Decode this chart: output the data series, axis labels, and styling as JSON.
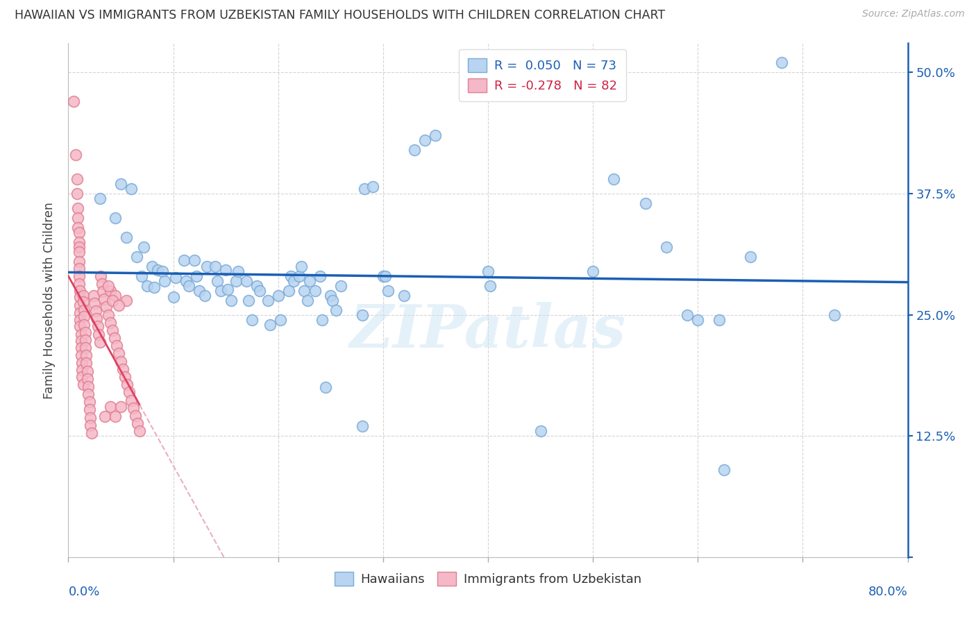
{
  "title": "HAWAIIAN VS IMMIGRANTS FROM UZBEKISTAN FAMILY HOUSEHOLDS WITH CHILDREN CORRELATION CHART",
  "source": "Source: ZipAtlas.com",
  "ylabel": "Family Households with Children",
  "xmin": 0.0,
  "xmax": 0.8,
  "ymin": 0.0,
  "ymax": 0.53,
  "watermark": "ZIPatlas",
  "blue_color": "#b8d4f0",
  "blue_edge": "#7aaad8",
  "blue_line": "#1a5fb4",
  "pink_color": "#f5b8c8",
  "pink_edge": "#e08090",
  "pink_line_solid": "#e04060",
  "pink_line_dash": "#e8b0c0",
  "blue_scatter": [
    [
      0.03,
      0.37
    ],
    [
      0.045,
      0.35
    ],
    [
      0.05,
      0.385
    ],
    [
      0.055,
      0.33
    ],
    [
      0.06,
      0.38
    ],
    [
      0.065,
      0.31
    ],
    [
      0.07,
      0.29
    ],
    [
      0.072,
      0.32
    ],
    [
      0.075,
      0.28
    ],
    [
      0.08,
      0.3
    ],
    [
      0.082,
      0.278
    ],
    [
      0.085,
      0.296
    ],
    [
      0.09,
      0.295
    ],
    [
      0.092,
      0.285
    ],
    [
      0.1,
      0.268
    ],
    [
      0.102,
      0.288
    ],
    [
      0.11,
      0.306
    ],
    [
      0.112,
      0.285
    ],
    [
      0.115,
      0.28
    ],
    [
      0.12,
      0.306
    ],
    [
      0.122,
      0.29
    ],
    [
      0.125,
      0.275
    ],
    [
      0.13,
      0.27
    ],
    [
      0.132,
      0.3
    ],
    [
      0.14,
      0.3
    ],
    [
      0.142,
      0.285
    ],
    [
      0.145,
      0.275
    ],
    [
      0.15,
      0.296
    ],
    [
      0.152,
      0.276
    ],
    [
      0.155,
      0.265
    ],
    [
      0.16,
      0.285
    ],
    [
      0.162,
      0.295
    ],
    [
      0.17,
      0.285
    ],
    [
      0.172,
      0.265
    ],
    [
      0.175,
      0.245
    ],
    [
      0.18,
      0.28
    ],
    [
      0.182,
      0.275
    ],
    [
      0.19,
      0.265
    ],
    [
      0.192,
      0.24
    ],
    [
      0.2,
      0.27
    ],
    [
      0.202,
      0.245
    ],
    [
      0.21,
      0.275
    ],
    [
      0.212,
      0.29
    ],
    [
      0.215,
      0.285
    ],
    [
      0.22,
      0.29
    ],
    [
      0.222,
      0.3
    ],
    [
      0.225,
      0.275
    ],
    [
      0.228,
      0.265
    ],
    [
      0.23,
      0.285
    ],
    [
      0.235,
      0.275
    ],
    [
      0.24,
      0.29
    ],
    [
      0.242,
      0.245
    ],
    [
      0.245,
      0.175
    ],
    [
      0.25,
      0.27
    ],
    [
      0.252,
      0.265
    ],
    [
      0.255,
      0.255
    ],
    [
      0.26,
      0.28
    ],
    [
      0.28,
      0.25
    ],
    [
      0.282,
      0.38
    ],
    [
      0.29,
      0.382
    ],
    [
      0.3,
      0.29
    ],
    [
      0.302,
      0.29
    ],
    [
      0.305,
      0.275
    ],
    [
      0.32,
      0.27
    ],
    [
      0.33,
      0.42
    ],
    [
      0.34,
      0.43
    ],
    [
      0.35,
      0.435
    ],
    [
      0.4,
      0.295
    ],
    [
      0.402,
      0.28
    ],
    [
      0.45,
      0.13
    ],
    [
      0.5,
      0.295
    ],
    [
      0.52,
      0.39
    ],
    [
      0.55,
      0.365
    ],
    [
      0.57,
      0.32
    ],
    [
      0.59,
      0.25
    ],
    [
      0.6,
      0.245
    ],
    [
      0.62,
      0.245
    ],
    [
      0.625,
      0.09
    ],
    [
      0.65,
      0.31
    ],
    [
      0.68,
      0.51
    ],
    [
      0.73,
      0.25
    ],
    [
      0.28,
      0.135
    ]
  ],
  "pink_scatter": [
    [
      0.005,
      0.47
    ],
    [
      0.007,
      0.415
    ],
    [
      0.008,
      0.39
    ],
    [
      0.008,
      0.375
    ],
    [
      0.009,
      0.36
    ],
    [
      0.009,
      0.35
    ],
    [
      0.009,
      0.34
    ],
    [
      0.01,
      0.335
    ],
    [
      0.01,
      0.325
    ],
    [
      0.01,
      0.32
    ],
    [
      0.01,
      0.315
    ],
    [
      0.01,
      0.305
    ],
    [
      0.01,
      0.298
    ],
    [
      0.01,
      0.29
    ],
    [
      0.01,
      0.282
    ],
    [
      0.011,
      0.275
    ],
    [
      0.011,
      0.268
    ],
    [
      0.011,
      0.26
    ],
    [
      0.011,
      0.252
    ],
    [
      0.011,
      0.245
    ],
    [
      0.011,
      0.238
    ],
    [
      0.012,
      0.23
    ],
    [
      0.012,
      0.223
    ],
    [
      0.012,
      0.216
    ],
    [
      0.012,
      0.208
    ],
    [
      0.013,
      0.2
    ],
    [
      0.013,
      0.193
    ],
    [
      0.013,
      0.186
    ],
    [
      0.014,
      0.178
    ],
    [
      0.014,
      0.27
    ],
    [
      0.014,
      0.263
    ],
    [
      0.015,
      0.255
    ],
    [
      0.015,
      0.248
    ],
    [
      0.015,
      0.24
    ],
    [
      0.016,
      0.232
    ],
    [
      0.016,
      0.224
    ],
    [
      0.016,
      0.216
    ],
    [
      0.017,
      0.208
    ],
    [
      0.017,
      0.2
    ],
    [
      0.018,
      0.192
    ],
    [
      0.018,
      0.184
    ],
    [
      0.019,
      0.176
    ],
    [
      0.019,
      0.168
    ],
    [
      0.02,
      0.16
    ],
    [
      0.02,
      0.152
    ],
    [
      0.021,
      0.144
    ],
    [
      0.021,
      0.136
    ],
    [
      0.022,
      0.128
    ],
    [
      0.024,
      0.27
    ],
    [
      0.025,
      0.262
    ],
    [
      0.026,
      0.254
    ],
    [
      0.027,
      0.246
    ],
    [
      0.028,
      0.238
    ],
    [
      0.029,
      0.23
    ],
    [
      0.03,
      0.222
    ],
    [
      0.031,
      0.29
    ],
    [
      0.032,
      0.282
    ],
    [
      0.033,
      0.274
    ],
    [
      0.034,
      0.266
    ],
    [
      0.036,
      0.258
    ],
    [
      0.038,
      0.25
    ],
    [
      0.04,
      0.242
    ],
    [
      0.042,
      0.234
    ],
    [
      0.044,
      0.226
    ],
    [
      0.046,
      0.218
    ],
    [
      0.048,
      0.21
    ],
    [
      0.05,
      0.202
    ],
    [
      0.052,
      0.194
    ],
    [
      0.054,
      0.186
    ],
    [
      0.056,
      0.178
    ],
    [
      0.058,
      0.17
    ],
    [
      0.06,
      0.162
    ],
    [
      0.062,
      0.154
    ],
    [
      0.064,
      0.146
    ],
    [
      0.066,
      0.138
    ],
    [
      0.068,
      0.13
    ],
    [
      0.04,
      0.275
    ],
    [
      0.04,
      0.155
    ],
    [
      0.045,
      0.27
    ],
    [
      0.05,
      0.155
    ],
    [
      0.055,
      0.265
    ],
    [
      0.035,
      0.145
    ],
    [
      0.038,
      0.28
    ],
    [
      0.042,
      0.265
    ],
    [
      0.045,
      0.145
    ],
    [
      0.048,
      0.26
    ]
  ]
}
